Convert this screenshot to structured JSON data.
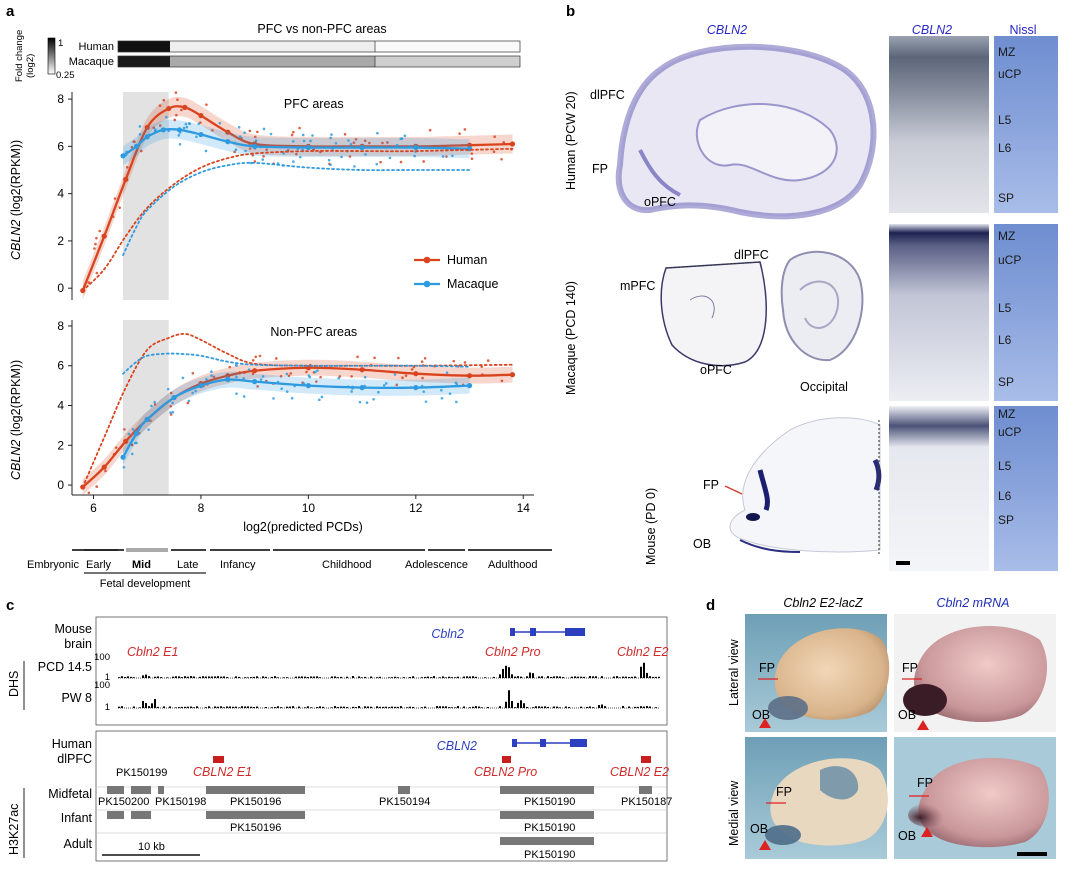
{
  "panels": {
    "a": "a",
    "b": "b",
    "c": "c",
    "d": "d"
  },
  "panel_a": {
    "title": "PFC vs non-PFC areas",
    "fold_label": "Fold change",
    "fold_unit": "(log2)",
    "fold_max": "1",
    "fold_min": "0.25",
    "bar_human": "Human",
    "bar_macaque": "Macaque",
    "top_plot_title": "PFC areas",
    "bottom_plot_title": "Non-PFC areas",
    "ylabel_gene": "CBLN2",
    "ylabel_unit": "(log2(RPKM))",
    "xlabel": "log2(predicted PCDs)",
    "legend_human": "Human",
    "legend_macaque": "Macaque",
    "stages": {
      "embryonic": "Embryonic",
      "early": "Early",
      "mid": "Mid",
      "late": "Late",
      "infancy": "Infancy",
      "childhood": "Childhood",
      "adolescence": "Adolescence",
      "adulthood": "Adulthood",
      "fetal": "Fetal development"
    }
  },
  "chart_data": [
    {
      "type": "line",
      "title": "PFC areas",
      "xlabel": "log2(predicted PCDs)",
      "ylabel": "CBLN2 (log2(RPKM))",
      "xlim": [
        5.6,
        14.2
      ],
      "ylim": [
        -0.5,
        8.3
      ],
      "xticks": [
        6,
        8,
        10,
        12,
        14
      ],
      "yticks": [
        0,
        2,
        4,
        6,
        8
      ],
      "shaded_range": [
        6.55,
        7.4
      ],
      "series": [
        {
          "name": "Human",
          "color": "#d9431e",
          "x": [
            5.8,
            6.2,
            6.6,
            7.0,
            7.4,
            7.7,
            8.0,
            8.5,
            9.0,
            10.0,
            11.0,
            12.0,
            13.0,
            13.8
          ],
          "y": [
            -0.1,
            2.2,
            4.6,
            6.8,
            7.6,
            7.65,
            7.3,
            6.6,
            6.1,
            6.0,
            6.0,
            6.0,
            6.05,
            6.1
          ]
        },
        {
          "name": "Macaque",
          "color": "#2e9be0",
          "x": [
            6.55,
            6.8,
            7.0,
            7.3,
            7.6,
            8.0,
            8.5,
            9.0,
            10.0,
            11.0,
            12.0,
            13.0
          ],
          "y": [
            5.6,
            6.0,
            6.4,
            6.7,
            6.7,
            6.5,
            6.2,
            6.0,
            5.95,
            5.95,
            5.95,
            5.9
          ]
        },
        {
          "name": "Human (non-PFC)",
          "style": "dotted",
          "color": "#d9431e",
          "x": [
            5.8,
            6.2,
            6.6,
            7.0,
            7.5,
            8.0,
            8.5,
            9.0,
            10.0,
            11.0,
            12.0,
            13.8
          ],
          "y": [
            -0.1,
            0.8,
            2.2,
            3.4,
            4.4,
            5.1,
            5.5,
            5.7,
            5.8,
            5.8,
            5.8,
            5.9
          ]
        },
        {
          "name": "Macaque (non-PFC)",
          "style": "dotted",
          "color": "#2e9be0",
          "x": [
            6.55,
            6.8,
            7.0,
            7.5,
            8.0,
            8.5,
            9.0,
            10.0,
            11.0,
            12.0,
            13.0
          ],
          "y": [
            1.4,
            2.6,
            3.3,
            4.3,
            4.9,
            5.2,
            5.3,
            5.1,
            5.0,
            5.0,
            5.0
          ]
        }
      ]
    },
    {
      "type": "line",
      "title": "Non-PFC areas",
      "xlabel": "log2(predicted PCDs)",
      "ylabel": "CBLN2 (log2(RPKM))",
      "xlim": [
        5.6,
        14.2
      ],
      "ylim": [
        -0.5,
        8.3
      ],
      "xticks": [
        6,
        8,
        10,
        12,
        14
      ],
      "yticks": [
        0,
        2,
        4,
        6,
        8
      ],
      "shaded_range": [
        6.55,
        7.4
      ],
      "series": [
        {
          "name": "Human",
          "color": "#d9431e",
          "x": [
            5.8,
            6.2,
            6.6,
            7.0,
            7.5,
            8.0,
            8.5,
            9.0,
            10.0,
            11.0,
            12.0,
            13.0,
            13.8
          ],
          "y": [
            -0.1,
            0.9,
            2.2,
            3.3,
            4.4,
            5.1,
            5.5,
            5.75,
            5.9,
            5.8,
            5.6,
            5.5,
            5.55
          ]
        },
        {
          "name": "Macaque",
          "color": "#2e9be0",
          "x": [
            6.55,
            6.8,
            7.0,
            7.5,
            8.0,
            8.5,
            9.0,
            10.0,
            11.0,
            12.0,
            13.0
          ],
          "y": [
            1.4,
            2.6,
            3.3,
            4.4,
            5.0,
            5.3,
            5.2,
            5.0,
            4.9,
            4.9,
            5.0
          ]
        },
        {
          "name": "Human (PFC)",
          "style": "dotted",
          "color": "#d9431e",
          "x": [
            5.8,
            6.2,
            6.6,
            7.0,
            7.4,
            7.7,
            8.0,
            8.5,
            9.0,
            10.0,
            11.0,
            12.0,
            13.8
          ],
          "y": [
            -0.1,
            2.4,
            4.9,
            6.8,
            7.4,
            7.6,
            7.3,
            6.6,
            6.1,
            6.0,
            6.0,
            6.0,
            6.05
          ]
        },
        {
          "name": "Macaque (PFC)",
          "style": "dotted",
          "color": "#2e9be0",
          "x": [
            6.55,
            6.8,
            7.0,
            7.3,
            7.6,
            8.0,
            8.5,
            9.0,
            10.0,
            11.0,
            12.0,
            13.0
          ],
          "y": [
            5.6,
            6.2,
            6.5,
            6.6,
            6.6,
            6.5,
            6.2,
            6.05,
            6.0,
            6.0,
            6.0,
            5.95
          ]
        }
      ]
    }
  ],
  "panel_b": {
    "human_gene": "CBLN2",
    "col_gene": "CBLN2",
    "col_nissl": "Nissl",
    "row_human": "Human (PCW 20)",
    "row_macaque": "Macaque (PCD 140)",
    "row_mouse": "Mouse (PD 0)",
    "human_labels": {
      "dlpfc": "dlPFC",
      "fp": "FP",
      "opfc": "oPFC"
    },
    "macaque_labels": {
      "dlpfc": "dlPFC",
      "mpfc": "mPFC",
      "opfc": "oPFC",
      "occipital": "Occipital"
    },
    "mouse_labels": {
      "fp": "FP",
      "ob": "OB"
    },
    "layers": [
      "MZ",
      "uCP",
      "L5",
      "L6",
      "SP"
    ]
  },
  "panel_c": {
    "mouse_brain": [
      "Mouse",
      "brain"
    ],
    "dhs": "DHS",
    "pcd": "PCD 14.5",
    "pw": "PW 8",
    "scale_100": "100",
    "scale_1": "1",
    "cbln2_mouse": "Cbln2",
    "e1_mouse": "Cbln2 E1",
    "pro_mouse": "Cbln2 Pro",
    "e2_mouse": "Cbln2 E2",
    "human_dlpfc": [
      "Human",
      "dlPFC"
    ],
    "cbln2_human": "CBLN2",
    "e1_human": "CBLN2 E1",
    "pro_human": "CBLN2 Pro",
    "e2_human": "CBLN2 E2",
    "h3k27ac": "H3K27ac",
    "rows": {
      "midfetal": "Midfetal",
      "infant": "Infant",
      "adult": "Adult"
    },
    "pk": {
      "p199": "PK150199",
      "p200": "PK150200",
      "p198": "PK150198",
      "p196": "PK150196",
      "p194": "PK150194",
      "p190": "PK150190",
      "p187": "PK150187",
      "p196b": "PK150196",
      "p190b": "PK150190",
      "p190c": "PK150190"
    },
    "scale_bar": "10 kb"
  },
  "panel_d": {
    "col1": "Cbln2 E2-lacZ",
    "col2": "Cbln2 mRNA",
    "row1": "Lateral view",
    "row2": "Medial view",
    "fp": "FP",
    "ob": "OB"
  }
}
